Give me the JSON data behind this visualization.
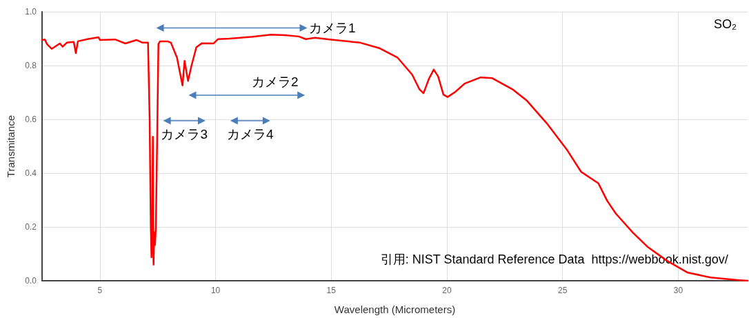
{
  "chart_data": {
    "type": "line",
    "xlabel": "Wavelength (Micrometers)",
    "ylabel": "Transmitance",
    "x": [
      2.5,
      2.62,
      2.71,
      2.92,
      3.27,
      3.39,
      3.57,
      3.87,
      3.96,
      4.05,
      4.46,
      4.94,
      5.0,
      5.65,
      6.1,
      6.58,
      6.84,
      7.08,
      7.15,
      7.2,
      7.23,
      7.26,
      7.29,
      7.31,
      7.32,
      7.35,
      7.38,
      7.42,
      7.47,
      7.53,
      7.6,
      7.92,
      8.07,
      8.33,
      8.57,
      8.66,
      8.81,
      8.96,
      9.17,
      9.41,
      9.91,
      10.1,
      10.6,
      11.6,
      12.4,
      13.0,
      13.6,
      13.9,
      14.3,
      15.0,
      16.25,
      17.1,
      17.86,
      18.5,
      18.81,
      18.99,
      19.22,
      19.43,
      19.62,
      19.85,
      20.03,
      20.36,
      20.77,
      21.46,
      21.96,
      22.83,
      23.45,
      24.32,
      25.18,
      25.8,
      26.55,
      26.93,
      27.3,
      28.03,
      28.66,
      29.52,
      30.39,
      31.4,
      32.5,
      33.0
    ],
    "series": [
      {
        "color": "#ff0000",
        "values": [
          0.895,
          0.897,
          0.88,
          0.862,
          0.882,
          0.87,
          0.885,
          0.888,
          0.846,
          0.89,
          0.898,
          0.905,
          0.895,
          0.897,
          0.882,
          0.895,
          0.885,
          0.885,
          0.6,
          0.2,
          0.087,
          0.18,
          0.535,
          0.1,
          0.06,
          0.18,
          0.133,
          0.2,
          0.5,
          0.88,
          0.89,
          0.89,
          0.885,
          0.83,
          0.726,
          0.817,
          0.743,
          0.8,
          0.868,
          0.883,
          0.882,
          0.898,
          0.9,
          0.907,
          0.915,
          0.913,
          0.908,
          0.898,
          0.903,
          0.896,
          0.885,
          0.864,
          0.83,
          0.766,
          0.712,
          0.697,
          0.75,
          0.785,
          0.76,
          0.692,
          0.683,
          0.702,
          0.733,
          0.756,
          0.753,
          0.712,
          0.67,
          0.585,
          0.488,
          0.405,
          0.362,
          0.297,
          0.25,
          0.18,
          0.127,
          0.074,
          0.031,
          0.012,
          0.003,
          0.0
        ]
      },
      {
        "name": "カメラ1",
        "color": "#4a7ebb",
        "marker": "triangle",
        "x": [
          7.6,
          13.8
        ],
        "values": [
          0.94,
          0.94
        ]
      },
      {
        "name": "カメラ2",
        "color": "#4a7ebb",
        "marker": "triangle",
        "x": [
          9.0,
          13.7
        ],
        "values": [
          0.69,
          0.69
        ]
      },
      {
        "name": "カメラ3",
        "color": "#4a7ebb",
        "marker": "triangle",
        "x": [
          7.9,
          9.4
        ],
        "values": [
          0.595,
          0.595
        ]
      },
      {
        "name": "カメラ4",
        "color": "#4a7ebb",
        "marker": "triangle",
        "x": [
          10.8,
          12.2
        ],
        "values": [
          0.595,
          0.595
        ]
      }
    ],
    "xlim": [
      2.5,
      33
    ],
    "xticks": [
      5,
      10,
      15,
      20,
      25,
      30
    ],
    "ylim": [
      0,
      1
    ],
    "yticks": [
      {
        "value": 0,
        "label": "0.0"
      },
      0.2,
      0.4,
      0.6,
      0.8,
      {
        "value": 1,
        "label": "1.0"
      }
    ],
    "grid": true,
    "marker": "none",
    "line_style": "solid",
    "annotations": [
      "SO₂",
      "引用: NIST Standard Reference Data  https://webbook.nist.gov/"
    ]
  }
}
